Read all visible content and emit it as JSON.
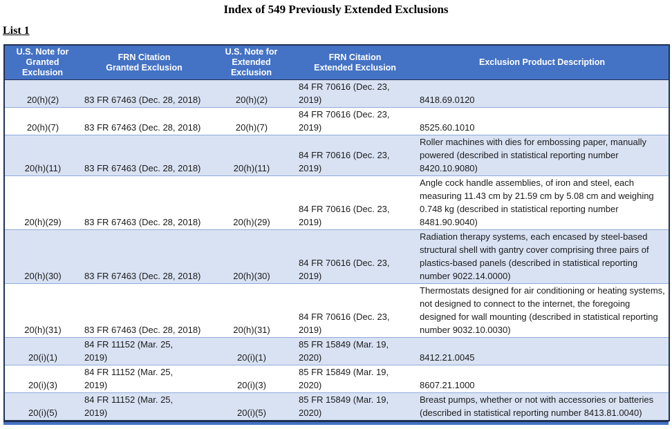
{
  "page": {
    "title": "Index of 549 Previously Extended Exclusions",
    "list_label": "List 1"
  },
  "colors": {
    "header_bg": "#4472C4",
    "header_text": "#FFFFFF",
    "band_bg": "#D9E2F3",
    "row_line": "#8EAADB",
    "outer_border": "#1F3050",
    "body_text": "#1A1A1A"
  },
  "table": {
    "columns": [
      "U.S. Note for\nGranted\nExclusion",
      "FRN Citation\nGranted Exclusion",
      "U.S. Note for\nExtended\nExclusion",
      "FRN Citation\nExtended Exclusion",
      "Exclusion Product Description"
    ],
    "rows": [
      [
        "20(h)(2)",
        "83 FR 67463 (Dec. 28, 2018)",
        "20(h)(2)",
        "84 FR 70616 (Dec. 23,\n2019)",
        "8418.69.0120"
      ],
      [
        "20(h)(7)",
        "83 FR 67463 (Dec. 28, 2018)",
        "20(h)(7)",
        "84 FR 70616 (Dec. 23,\n2019)",
        "8525.60.1010"
      ],
      [
        "20(h)(11)",
        "83 FR 67463 (Dec. 28, 2018)",
        "20(h)(11)",
        "84 FR 70616 (Dec. 23,\n2019)",
        "Roller machines with dies for embossing paper, manually powered (described in statistical reporting number 8420.10.9080)"
      ],
      [
        "20(h)(29)",
        "83 FR 67463 (Dec. 28, 2018)",
        "20(h)(29)",
        "84 FR 70616 (Dec. 23,\n2019)",
        "Angle cock handle assemblies, of iron and steel, each measuring 11.43 cm by 21.59 cm by 5.08 cm and weighing 0.748 kg (described in statistical reporting number 8481.90.9040)"
      ],
      [
        "20(h)(30)",
        "83 FR 67463 (Dec. 28, 2018)",
        "20(h)(30)",
        "84 FR 70616 (Dec. 23,\n2019)",
        "Radiation therapy systems, each encased by steel-based structural shell with gantry cover comprising three pairs of plastics-based panels (described in statistical reporting number 9022.14.0000)"
      ],
      [
        "20(h)(31)",
        "83 FR 67463 (Dec. 28, 2018)",
        "20(h)(31)",
        "84 FR 70616 (Dec. 23,\n2019)",
        "Thermostats designed for air conditioning or heating systems, not designed to connect to the internet, the foregoing designed for wall mounting (described in statistical reporting number 9032.10.0030)"
      ],
      [
        "20(i)(1)",
        "84 FR 11152 (Mar. 25,\n2019)",
        "20(i)(1)",
        "85 FR 15849 (Mar. 19,\n2020)",
        "8412.21.0045"
      ],
      [
        "20(i)(3)",
        "84 FR 11152 (Mar. 25,\n2019)",
        "20(i)(3)",
        "85 FR 15849 (Mar. 19,\n2020)",
        "8607.21.1000"
      ],
      [
        "20(i)(5)",
        "84 FR 11152 (Mar. 25,\n2019)",
        "20(i)(5)",
        "85 FR 15849 (Mar. 19,\n2020)",
        "Breast pumps, whether or not with accessories or batteries (described in statistical reporting number 8413.81.0040)"
      ]
    ]
  }
}
